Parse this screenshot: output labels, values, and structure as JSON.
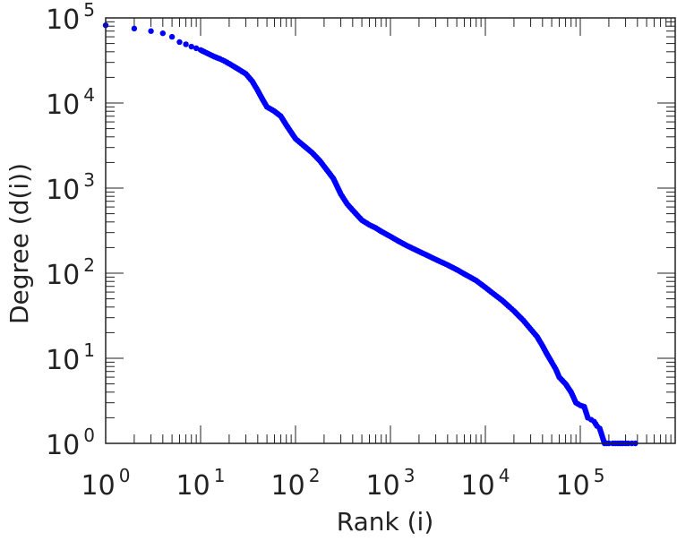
{
  "chart_data": {
    "type": "scatter",
    "xscale": "log",
    "yscale": "log",
    "xlabel": "Rank (i)",
    "ylabel": "Degree (d(i))",
    "xlim": [
      1,
      1000000
    ],
    "ylim": [
      1,
      100000
    ],
    "grid": false,
    "legend": "none",
    "x_ticks": [
      {
        "base": "10",
        "exp": "0"
      },
      {
        "base": "10",
        "exp": "1"
      },
      {
        "base": "10",
        "exp": "2"
      },
      {
        "base": "10",
        "exp": "3"
      },
      {
        "base": "10",
        "exp": "4"
      },
      {
        "base": "10",
        "exp": "5"
      }
    ],
    "y_ticks": [
      {
        "base": "10",
        "exp": "0"
      },
      {
        "base": "10",
        "exp": "1"
      },
      {
        "base": "10",
        "exp": "2"
      },
      {
        "base": "10",
        "exp": "3"
      },
      {
        "base": "10",
        "exp": "4"
      },
      {
        "base": "10",
        "exp": "5"
      }
    ],
    "marker_color": "#0000ff",
    "axis_color": "#222222",
    "series": [
      {
        "points": [
          [
            1,
            82000
          ],
          [
            2,
            75000
          ],
          [
            3,
            70000
          ],
          [
            4,
            66000
          ],
          [
            5,
            60000
          ],
          [
            6,
            52000
          ],
          [
            7,
            49000
          ],
          [
            8,
            46000
          ],
          [
            9,
            44000
          ],
          [
            10,
            42000
          ],
          [
            12,
            38000
          ],
          [
            14,
            35000
          ],
          [
            16,
            33000
          ],
          [
            18,
            31000
          ],
          [
            20,
            29000
          ],
          [
            25,
            25000
          ],
          [
            30,
            22000
          ],
          [
            35,
            18000
          ],
          [
            40,
            14000
          ],
          [
            45,
            11000
          ],
          [
            50,
            9000
          ],
          [
            60,
            8000
          ],
          [
            70,
            7000
          ],
          [
            80,
            5500
          ],
          [
            100,
            3800
          ],
          [
            120,
            3200
          ],
          [
            150,
            2600
          ],
          [
            180,
            2100
          ],
          [
            200,
            1800
          ],
          [
            250,
            1300
          ],
          [
            300,
            850
          ],
          [
            350,
            650
          ],
          [
            400,
            550
          ],
          [
            500,
            420
          ],
          [
            600,
            370
          ],
          [
            700,
            340
          ],
          [
            800,
            310
          ],
          [
            1000,
            270
          ],
          [
            1200,
            240
          ],
          [
            1500,
            210
          ],
          [
            2000,
            180
          ],
          [
            2500,
            160
          ],
          [
            3000,
            145
          ],
          [
            4000,
            125
          ],
          [
            5000,
            110
          ],
          [
            6000,
            98
          ],
          [
            8000,
            82
          ],
          [
            10000,
            68
          ],
          [
            12000,
            58
          ],
          [
            15000,
            48
          ],
          [
            18000,
            40
          ],
          [
            20000,
            36
          ],
          [
            25000,
            28
          ],
          [
            30000,
            22
          ],
          [
            35000,
            18
          ],
          [
            40000,
            14
          ],
          [
            45000,
            11
          ],
          [
            50000,
            9
          ],
          [
            55000,
            7.5
          ],
          [
            60000,
            6
          ],
          [
            70000,
            5
          ],
          [
            80000,
            4
          ],
          [
            90000,
            3
          ],
          [
            100000,
            2.8
          ],
          [
            110000,
            2.7
          ],
          [
            120000,
            2
          ],
          [
            130000,
            1.9
          ],
          [
            140000,
            1.8
          ],
          [
            150000,
            1.6
          ],
          [
            160000,
            1.5
          ],
          [
            180000,
            1
          ],
          [
            200000,
            1
          ],
          [
            220000,
            1
          ],
          [
            250000,
            1
          ],
          [
            280000,
            1
          ],
          [
            300000,
            1
          ],
          [
            320000,
            1
          ],
          [
            350000,
            1
          ],
          [
            380000,
            1
          ]
        ]
      }
    ]
  }
}
